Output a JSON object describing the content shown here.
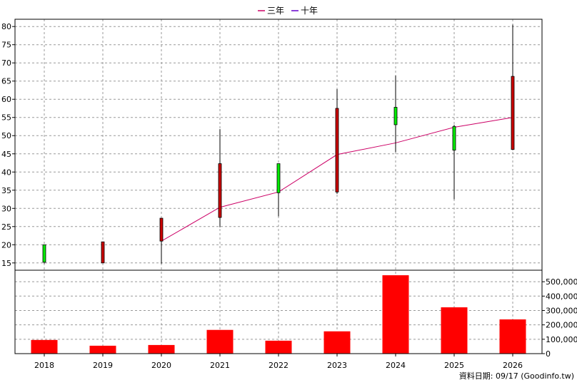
{
  "legend": [
    {
      "label": "三年",
      "color": "#cc0066"
    },
    {
      "label": "十年",
      "color": "#6600cc"
    }
  ],
  "footer": "資料日期: 09/17  (Goodinfo.tw)",
  "chart_data": {
    "type": "candlestick",
    "categories": [
      "2018",
      "2019",
      "2020",
      "2021",
      "2022",
      "2023",
      "2024",
      "2025",
      "2026"
    ],
    "price_axis": {
      "ylim": [
        13,
        82
      ],
      "ticks": [
        15,
        20,
        25,
        30,
        35,
        40,
        45,
        50,
        55,
        60,
        65,
        70,
        75,
        80
      ]
    },
    "volume_axis": {
      "ylim": [
        0,
        580000
      ],
      "ticks": [
        0,
        100000,
        200000,
        300000,
        400000,
        500000
      ],
      "tick_labels": [
        "0",
        "100,000",
        "200,000",
        "300,000",
        "400,000",
        "500,000"
      ]
    },
    "candles": [
      {
        "x": "2018",
        "open": 15.2,
        "close": 20.0,
        "high": 20.0,
        "low": 14.8,
        "color": "#00ee00"
      },
      {
        "x": "2019",
        "open": 20.8,
        "close": 15.0,
        "high": 20.8,
        "low": 15.0,
        "color": "#cc0000"
      },
      {
        "x": "2020",
        "open": 27.3,
        "close": 21.0,
        "high": 27.3,
        "low": 14.8,
        "color": "#cc0000"
      },
      {
        "x": "2021",
        "open": 42.3,
        "close": 27.5,
        "high": 51.8,
        "low": 24.8,
        "color": "#cc0000"
      },
      {
        "x": "2022",
        "open": 34.3,
        "close": 42.3,
        "high": 42.3,
        "low": 27.8,
        "color": "#00ee00"
      },
      {
        "x": "2023",
        "open": 57.5,
        "close": 34.5,
        "high": 62.8,
        "low": 34.0,
        "color": "#cc0000"
      },
      {
        "x": "2024",
        "open": 53.0,
        "close": 57.8,
        "high": 66.5,
        "low": 45.5,
        "color": "#00ee00"
      },
      {
        "x": "2025",
        "open": 46.0,
        "close": 52.5,
        "high": 53.0,
        "low": 32.5,
        "color": "#00ee00"
      },
      {
        "x": "2026",
        "open": 66.3,
        "close": 46.2,
        "high": 80.5,
        "low": 46.0,
        "color": "#cc0000"
      }
    ],
    "series": [
      {
        "name": "三年",
        "color": "#cc0066",
        "x": [
          "2020",
          "2021",
          "2022",
          "2023",
          "2024",
          "2025",
          "2026"
        ],
        "values": [
          21.0,
          30.3,
          34.5,
          44.8,
          48.0,
          52.3,
          55.0
        ]
      }
    ],
    "volume": {
      "color": "#ff0000",
      "values": [
        95000,
        55000,
        60000,
        165000,
        90000,
        155000,
        545000,
        322000,
        238000
      ]
    },
    "grid": true
  }
}
